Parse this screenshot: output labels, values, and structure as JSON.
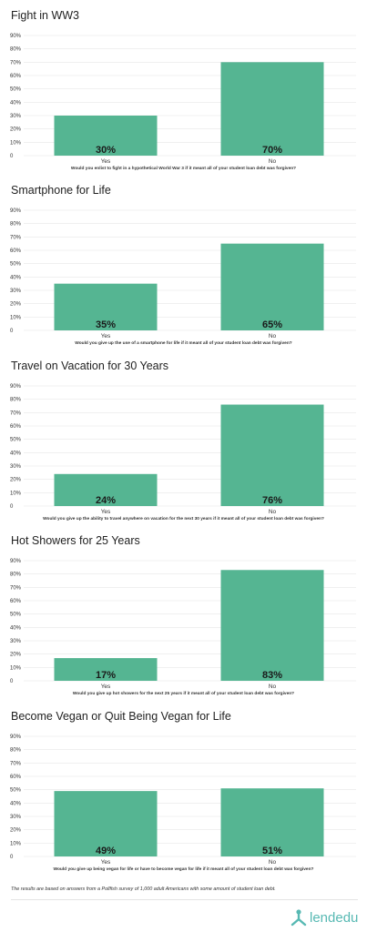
{
  "colors": {
    "bar": "#55b592",
    "grid": "#e6e6e6",
    "brand": "#57b9b3"
  },
  "chart_data": [
    {
      "type": "bar",
      "title": "Fight in WW3",
      "categories": [
        "Yes",
        "No"
      ],
      "values": [
        30,
        70
      ],
      "value_labels": [
        "30%",
        "70%"
      ],
      "xlabel": "Would you enlist to fight in a hypothetical World War 3 if it meant all of your student loan debt was forgiven?",
      "ylabel": "",
      "ylim": [
        0,
        90
      ],
      "yticks": [
        "0",
        "10%",
        "20%",
        "30%",
        "40%",
        "50%",
        "60%",
        "70%",
        "80%",
        "90%"
      ],
      "grid": true
    },
    {
      "type": "bar",
      "title": "Smartphone for Life",
      "categories": [
        "Yes",
        "No"
      ],
      "values": [
        35,
        65
      ],
      "value_labels": [
        "35%",
        "65%"
      ],
      "xlabel": "Would you give up the use of a smartphone for life if it meant all of your student loan debt was forgiven?",
      "ylabel": "",
      "ylim": [
        0,
        90
      ],
      "yticks": [
        "0",
        "10%",
        "20%",
        "30%",
        "40%",
        "50%",
        "60%",
        "70%",
        "80%",
        "90%"
      ],
      "grid": true
    },
    {
      "type": "bar",
      "title": "Travel on Vacation for 30 Years",
      "categories": [
        "Yes",
        "No"
      ],
      "values": [
        24,
        76
      ],
      "value_labels": [
        "24%",
        "76%"
      ],
      "xlabel": "Would you give up the ability to travel anywhere on vacation for the next 30 years if it meant all of your student loan debt was forgiven?",
      "ylabel": "",
      "ylim": [
        0,
        90
      ],
      "yticks": [
        "0",
        "10%",
        "20%",
        "30%",
        "40%",
        "50%",
        "60%",
        "70%",
        "80%",
        "90%"
      ],
      "grid": true
    },
    {
      "type": "bar",
      "title": "Hot Showers for 25 Years",
      "categories": [
        "Yes",
        "No"
      ],
      "values": [
        17,
        83
      ],
      "value_labels": [
        "17%",
        "83%"
      ],
      "xlabel": "Would you give up hot showers for the next 25 years if it meant all of your student loan debt was forgiven?",
      "ylabel": "",
      "ylim": [
        0,
        90
      ],
      "yticks": [
        "0",
        "10%",
        "20%",
        "30%",
        "40%",
        "50%",
        "60%",
        "70%",
        "80%",
        "90%"
      ],
      "grid": true
    },
    {
      "type": "bar",
      "title": "Become Vegan or Quit Being Vegan for Life",
      "categories": [
        "Yes",
        "No"
      ],
      "values": [
        49,
        51
      ],
      "value_labels": [
        "49%",
        "51%"
      ],
      "xlabel": "Would you give up being vegan for life or have to become vegan for life if it meant all of your student loan debt was forgiven?",
      "ylabel": "",
      "ylim": [
        0,
        90
      ],
      "yticks": [
        "0",
        "10%",
        "20%",
        "30%",
        "40%",
        "50%",
        "60%",
        "70%",
        "80%",
        "90%"
      ],
      "grid": true
    }
  ],
  "footer": {
    "note": "The results are based on answers from a Pollfish survey of 1,000 adult Americans with some amount of student loan debt.",
    "brand": "lendedu",
    "brand_icon": "lendedu-logo-icon"
  }
}
